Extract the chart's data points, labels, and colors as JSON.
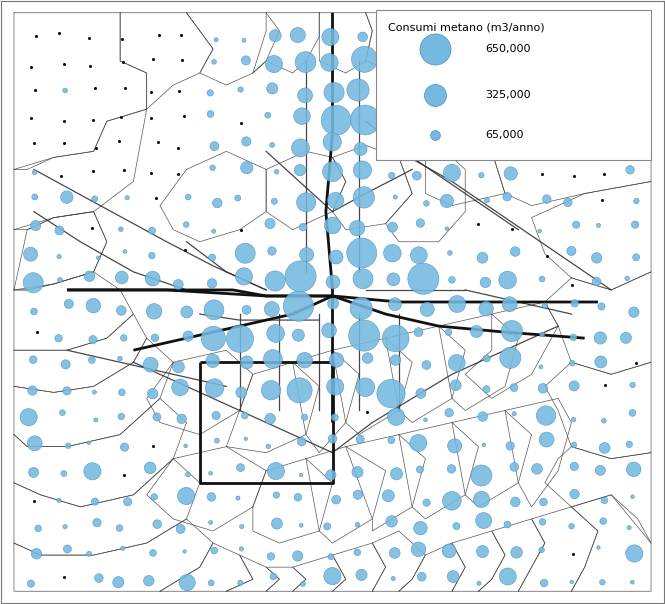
{
  "legend_title": "Consumi metano (m3/anno)",
  "legend_values": [
    650000,
    325000,
    65000
  ],
  "legend_labels": [
    "650,000",
    "325,000",
    "65,000"
  ],
  "bubble_color": "#74b9e0",
  "bubble_edgecolor": "#4a90c4",
  "dot_color": "#111111",
  "line_color_bold": "#111111",
  "line_color_thin": "#333333",
  "boundary_color": "#444444",
  "background_color": "#ffffff",
  "border_color": "#777777",
  "max_bubble_size": 500,
  "scale_ref": 650000,
  "seed": 7,
  "xlim": [
    0,
    100
  ],
  "ylim": [
    0,
    100
  ]
}
